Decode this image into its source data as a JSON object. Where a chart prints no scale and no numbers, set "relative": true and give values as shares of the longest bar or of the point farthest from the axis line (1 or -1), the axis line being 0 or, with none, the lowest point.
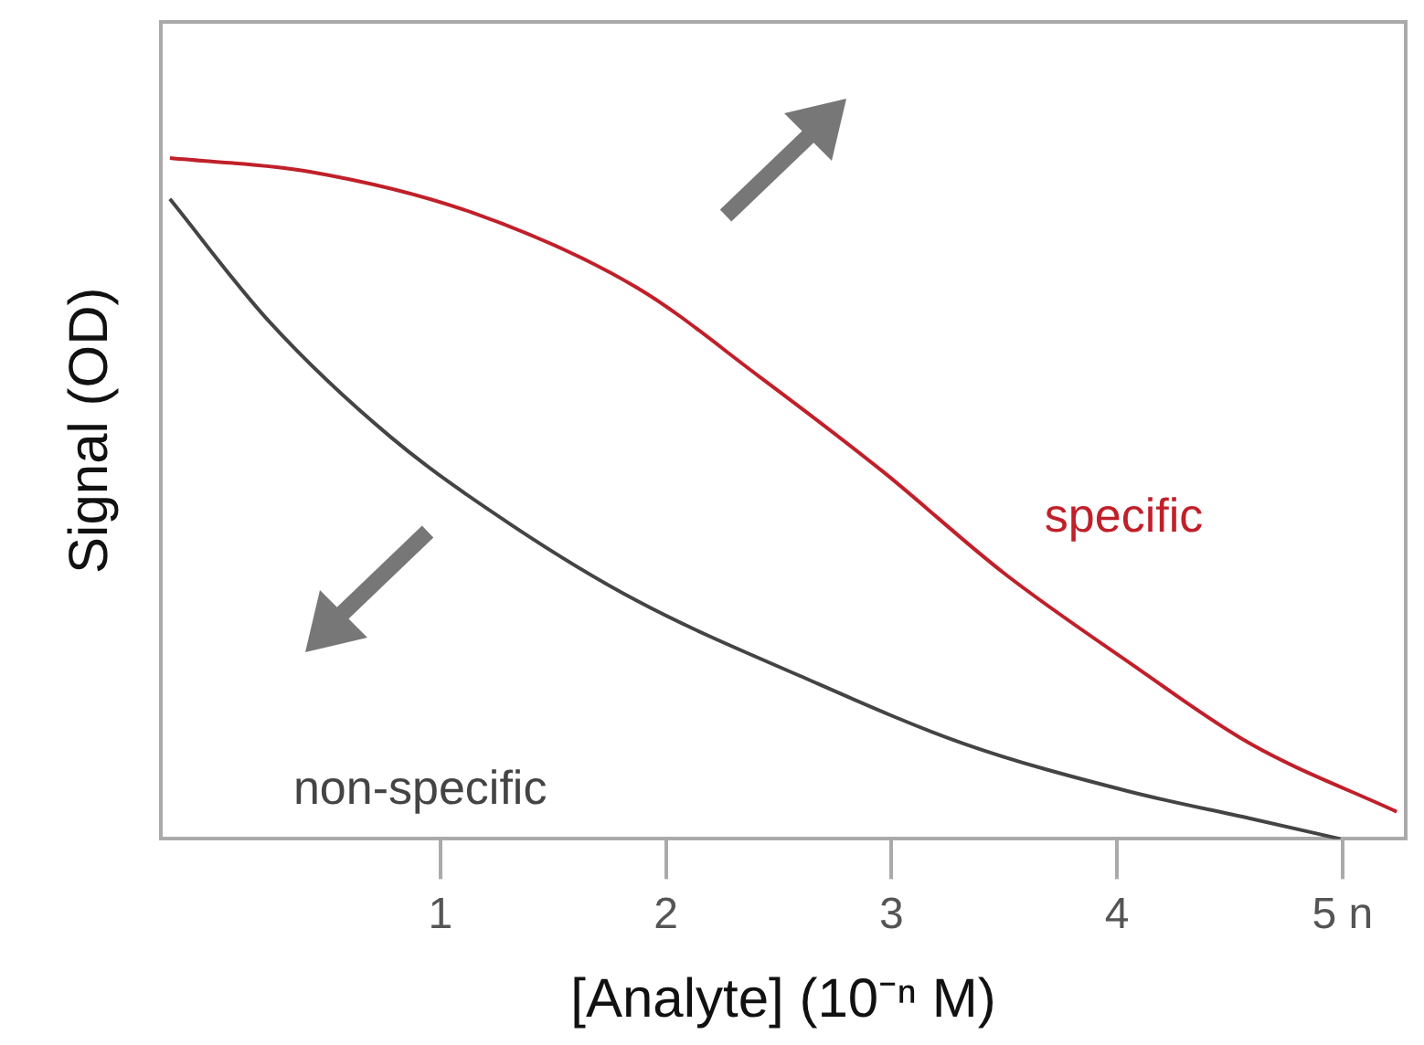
{
  "chart_data": {
    "type": "line",
    "relative": true,
    "xlabel": "[Analyte] (10⁻ⁿ M)",
    "ylabel": "Signal (OD)",
    "xlim": [
      -0.24,
      5.28
    ],
    "xticks": [
      1,
      2,
      3,
      4,
      {
        "value": 5,
        "label": "5 n"
      }
    ],
    "marker": "none",
    "legend": false,
    "grid": false,
    "series": [
      {
        "name": "specific",
        "color": "#c0202a",
        "x": [
          -0.2,
          0.42,
          1.14,
          1.87,
          2.41,
          2.96,
          3.5,
          4.05,
          4.59,
          5.24
        ],
        "values": [
          1.0,
          0.98,
          0.92,
          0.81,
          0.68,
          0.54,
          0.39,
          0.26,
          0.14,
          0.04
        ]
      },
      {
        "name": "non-specific",
        "color": "#444444",
        "x": [
          -0.2,
          0.24,
          0.78,
          1.32,
          1.87,
          2.59,
          3.32,
          4.05,
          4.59,
          4.99
        ],
        "values": [
          0.94,
          0.76,
          0.59,
          0.46,
          0.35,
          0.24,
          0.14,
          0.07,
          0.03,
          0.0
        ]
      }
    ]
  }
}
